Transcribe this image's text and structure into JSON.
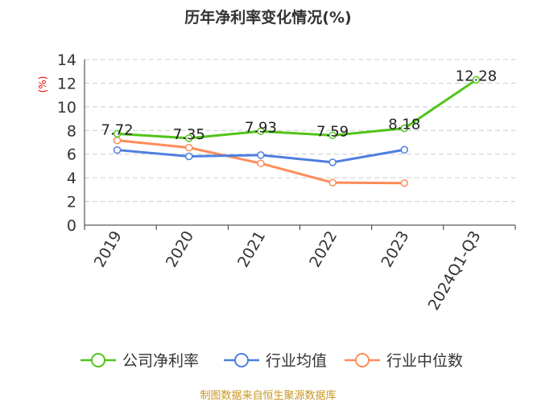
{
  "chart_data": {
    "type": "line",
    "title": "历年净利率变化情况(%)",
    "ylabel": "(%)",
    "xlabel": "",
    "ylim": [
      0,
      14
    ],
    "yticks": [
      0,
      2,
      4,
      6,
      8,
      10,
      12,
      14
    ],
    "grid": true,
    "legend_position": "bottom",
    "categories": [
      "2019",
      "2020",
      "2021",
      "2022",
      "2023",
      "2024Q1-Q3"
    ],
    "series": [
      {
        "name": "公司净利率",
        "color": "#52c41a",
        "values": [
          7.72,
          7.35,
          7.93,
          7.59,
          8.18,
          12.28
        ],
        "labels": [
          "7.72",
          "7.35",
          "7.93",
          "7.59",
          "8.18",
          "12.28"
        ]
      },
      {
        "name": "行业均值",
        "color": "#4e7fe0",
        "values": [
          6.35,
          5.81,
          5.92,
          5.31,
          6.37,
          null
        ]
      },
      {
        "name": "行业中位数",
        "color": "#ff8c5a",
        "values": [
          7.16,
          6.55,
          5.22,
          3.59,
          3.55,
          null
        ]
      }
    ]
  },
  "footer": "制图数据来自恒生聚源数据库"
}
